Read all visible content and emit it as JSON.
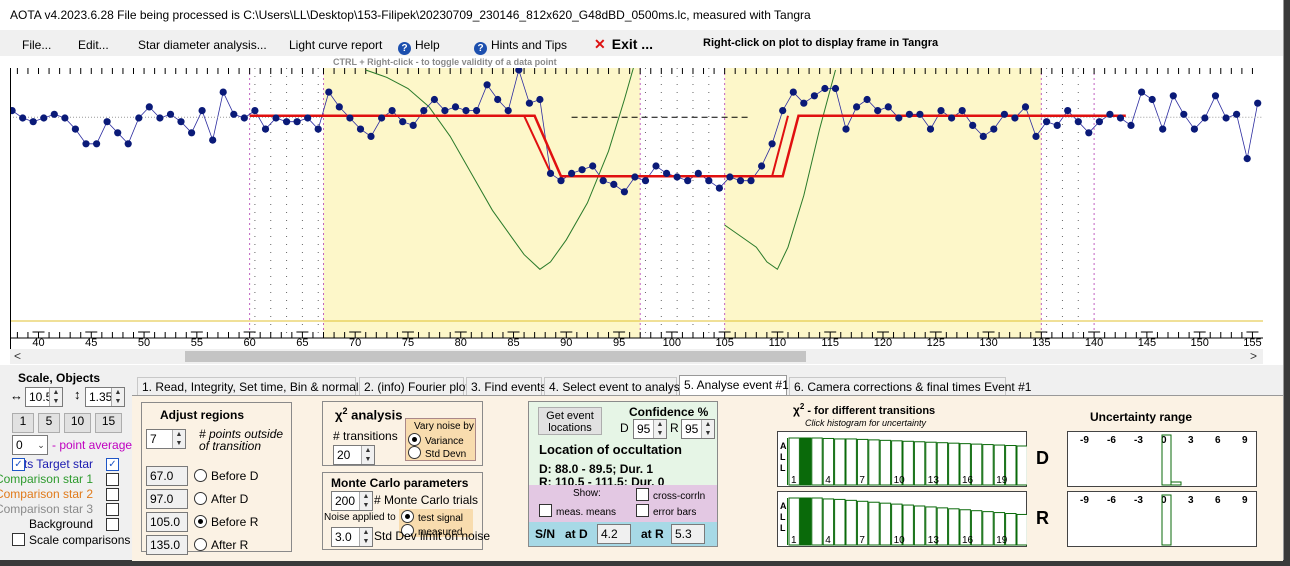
{
  "window": {
    "title": "AOTA v4.2023.6.28    File being processed is C:\\Users\\LL\\Desktop\\153-Filipek\\20230709_230146_812x620_G48dBD_0500ms.lc, measured with Tangra"
  },
  "menu": {
    "file": "File...",
    "edit": "Edit...",
    "star_diameter": "Star diameter analysis...",
    "light_curve": "Light curve report",
    "help": "Help",
    "hints": "Hints and Tips",
    "exit": "Exit ...",
    "right_click_note": "Right-click on plot to display frame in Tangra"
  },
  "plot_hint": "CTRL + Right-click  -  to toggle validity of a data point",
  "chart_data": {
    "type": "scatter",
    "x_ticks": [
      40,
      45,
      50,
      55,
      60,
      65,
      70,
      75,
      80,
      85,
      90,
      95,
      100,
      105,
      110,
      115,
      120,
      125,
      130,
      135,
      140,
      145,
      150,
      155
    ],
    "xlim": [
      37.3,
      156.0
    ],
    "ylim": [
      -8,
      26
    ],
    "regions": [
      {
        "from": 67,
        "to": 97,
        "color": "#fdf7c9"
      },
      {
        "from": 105,
        "to": 135,
        "color": "#fdf7c9"
      }
    ],
    "invalid_bands": [
      {
        "from": 60,
        "to": 67
      },
      {
        "from": 97,
        "to": 105
      },
      {
        "from": 135,
        "to": 140
      }
    ],
    "points": {
      "x": [
        37.5,
        38.5,
        39.5,
        40.5,
        41.5,
        42.5,
        43.5,
        44.5,
        45.5,
        46.5,
        47.5,
        48.5,
        49.5,
        50.5,
        51.5,
        52.5,
        53.5,
        54.5,
        55.5,
        56.5,
        57.5,
        58.5,
        59.5,
        60.5,
        61.5,
        62.5,
        63.5,
        64.5,
        65.5,
        66.5,
        67.5,
        68.5,
        69.5,
        70.5,
        71.5,
        72.5,
        73.5,
        74.5,
        75.5,
        76.5,
        77.5,
        78.5,
        79.5,
        80.5,
        81.5,
        82.5,
        83.5,
        84.5,
        85.5,
        86.5,
        87.5,
        88.5,
        89.5,
        90.5,
        91.5,
        92.5,
        93.5,
        94.5,
        95.5,
        96.5,
        97.5,
        98.5,
        99.5,
        100.5,
        101.5,
        102.5,
        103.5,
        104.5,
        105.5,
        106.5,
        107.5,
        108.5,
        109.5,
        110.5,
        111.5,
        112.5,
        113.5,
        114.5,
        115.5,
        116.5,
        117.5,
        118.5,
        119.5,
        120.5,
        121.5,
        122.5,
        123.5,
        124.5,
        125.5,
        126.5,
        127.5,
        128.5,
        129.5,
        130.5,
        131.5,
        132.5,
        133.5,
        134.5,
        135.5,
        136.5,
        137.5,
        138.5,
        139.5,
        140.5,
        141.5,
        142.5,
        143.5,
        144.5,
        145.5,
        146.5,
        147.5,
        148.5,
        149.5,
        150.5,
        151.5,
        152.5,
        153.5,
        154.5,
        155.5
      ],
      "y": [
        20.5,
        19.5,
        19.0,
        19.5,
        20.0,
        19.5,
        18.0,
        16.0,
        16.0,
        19.0,
        17.5,
        16.0,
        19.5,
        21.0,
        19.5,
        20.0,
        19.0,
        17.5,
        20.5,
        16.5,
        23.0,
        20.0,
        19.5,
        20.5,
        18.0,
        19.5,
        19.0,
        19.0,
        19.5,
        18.0,
        23.0,
        21.0,
        19.5,
        18.0,
        17.0,
        19.5,
        20.5,
        19.0,
        18.5,
        20.5,
        22.0,
        20.5,
        21.0,
        20.5,
        20.5,
        24.0,
        22.0,
        20.5,
        26.0,
        21.5,
        22.0,
        12.0,
        11.0,
        12.0,
        12.5,
        13.0,
        11.0,
        10.5,
        9.5,
        11.5,
        11.0,
        13.0,
        12.0,
        11.5,
        11.0,
        12.0,
        11.0,
        10.0,
        11.5,
        11.0,
        11.0,
        13.0,
        16.0,
        20.5,
        23.0,
        21.5,
        22.5,
        23.5,
        23.5,
        18.0,
        21.0,
        22.0,
        20.5,
        21.0,
        19.5,
        20.0,
        20.0,
        18.0,
        20.5,
        19.5,
        20.5,
        18.5,
        17.0,
        18.0,
        20.0,
        19.5,
        21.0,
        17.0,
        19.0,
        18.5,
        20.5,
        19.0,
        17.5,
        19.0,
        20.0,
        19.5,
        18.5,
        23.0,
        22.0,
        18.0,
        22.5,
        20.0,
        18.0,
        19.5,
        22.5,
        19.5,
        20.0,
        14.0,
        21.5
      ]
    },
    "baseline_level": 19.8,
    "event_level": 11.6,
    "fit_transitions": {
      "D_start": 88,
      "D_end": 89.5,
      "R_start": 110.5,
      "R_end": 111.5
    }
  },
  "scale_panel": {
    "title": "Scale, Objects",
    "h_value": "10.5",
    "v_value": "1.35",
    "buttons": [
      "1",
      "5",
      "10",
      "15"
    ],
    "point_avg_value": "0",
    "point_avg_label": "- point average",
    "objects": [
      {
        "label": "its  Target star",
        "color": "#1a1ab0",
        "checked": true
      },
      {
        "label": "Comparison star 1",
        "color": "#2e9b2e",
        "checked": false
      },
      {
        "label": "Comparison star 2",
        "color": "#e07a1a",
        "checked": false
      },
      {
        "label": "Comparison star 3",
        "color": "#8a8a8a",
        "checked": false
      },
      {
        "label": "Background",
        "color": "#000000",
        "checked": false
      }
    ],
    "scale_comparisons": "Scale comparisons"
  },
  "tabs": [
    "1. Read, Integrity, Set time, Bin & normalise",
    "2. (info) Fourier plot",
    "3. Find events",
    "4. Select event to analyse",
    "5. Analyse event #1",
    "6. Camera corrections & final times Event #1"
  ],
  "adjust": {
    "title": "Adjust regions",
    "points_value": "7",
    "points_label_1": "# points outside",
    "points_label_2": "of transition",
    "rows": [
      {
        "value": "67.0",
        "label": "Before D",
        "selected": false
      },
      {
        "value": "97.0",
        "label": "After D",
        "selected": false
      },
      {
        "value": "105.0",
        "label": "Before R",
        "selected": true
      },
      {
        "value": "135.0",
        "label": "After R",
        "selected": false
      }
    ]
  },
  "chi2": {
    "title": "χ",
    "title_sup": "2",
    "title_rest": " analysis",
    "transitions_label": "# transitions",
    "transitions_value": "20",
    "vary_title": "Vary noise by",
    "vary_options": [
      {
        "label": "Variance",
        "selected": true
      },
      {
        "label": "Std Devn",
        "selected": false
      }
    ]
  },
  "montecarlo": {
    "title": "Monte Carlo parameters",
    "trials_value": "200",
    "trials_label": "# Monte Carlo trials",
    "noise_applied": "Noise applied to",
    "noise_options": [
      {
        "label": "test signal",
        "selected": true
      },
      {
        "label": "measured",
        "selected": false
      }
    ],
    "stddev_value": "3.0",
    "stddev_label": "Std Dev limit on noise"
  },
  "event": {
    "get_button_1": "Get event",
    "get_button_2": "locations",
    "confidence_title": "Confidence %",
    "d_label": "D",
    "d_value": "95",
    "r_label": "R",
    "r_value": "95",
    "location_title": "Location of occultation",
    "d_line": "D: 88.0 - 89.5; Dur. 1",
    "r_line": "R: 110.5 - 111.5; Dur. 0",
    "show_label": "Show:",
    "meas_means": "meas. means",
    "cross_corr": "cross-corrln",
    "error_bars": "error bars",
    "sn_label": "S/N",
    "at_d_label": "at D",
    "at_d_value": "4.2",
    "at_r_label": "at R",
    "at_r_value": "5.3"
  },
  "histogram": {
    "title_chi": "χ",
    "title_sup": "2",
    "title_rest": " - for different transitions",
    "subtitle": "Click histogram for uncertainty",
    "all_label": [
      "A",
      "L",
      "L"
    ],
    "x_labels": [
      "1",
      "4",
      "7",
      "10",
      "13",
      "16",
      "19"
    ],
    "d_label": "D",
    "r_label": "R",
    "d_bars": [
      1.0,
      1.0,
      1.0,
      0.99,
      0.98,
      0.98,
      0.97,
      0.96,
      0.95,
      0.94,
      0.93,
      0.92,
      0.91,
      0.9,
      0.89,
      0.88,
      0.87,
      0.86,
      0.85,
      0.84,
      0.83
    ],
    "r_bars": [
      1.0,
      1.0,
      1.0,
      0.98,
      0.97,
      0.95,
      0.93,
      0.91,
      0.89,
      0.87,
      0.85,
      0.83,
      0.81,
      0.79,
      0.77,
      0.75,
      0.73,
      0.71,
      0.69,
      0.67,
      0.65
    ]
  },
  "uncertainty": {
    "title": "Uncertainty range",
    "axis_labels": [
      "-9",
      "-6",
      "-3",
      "0",
      "3",
      "6",
      "9"
    ]
  }
}
